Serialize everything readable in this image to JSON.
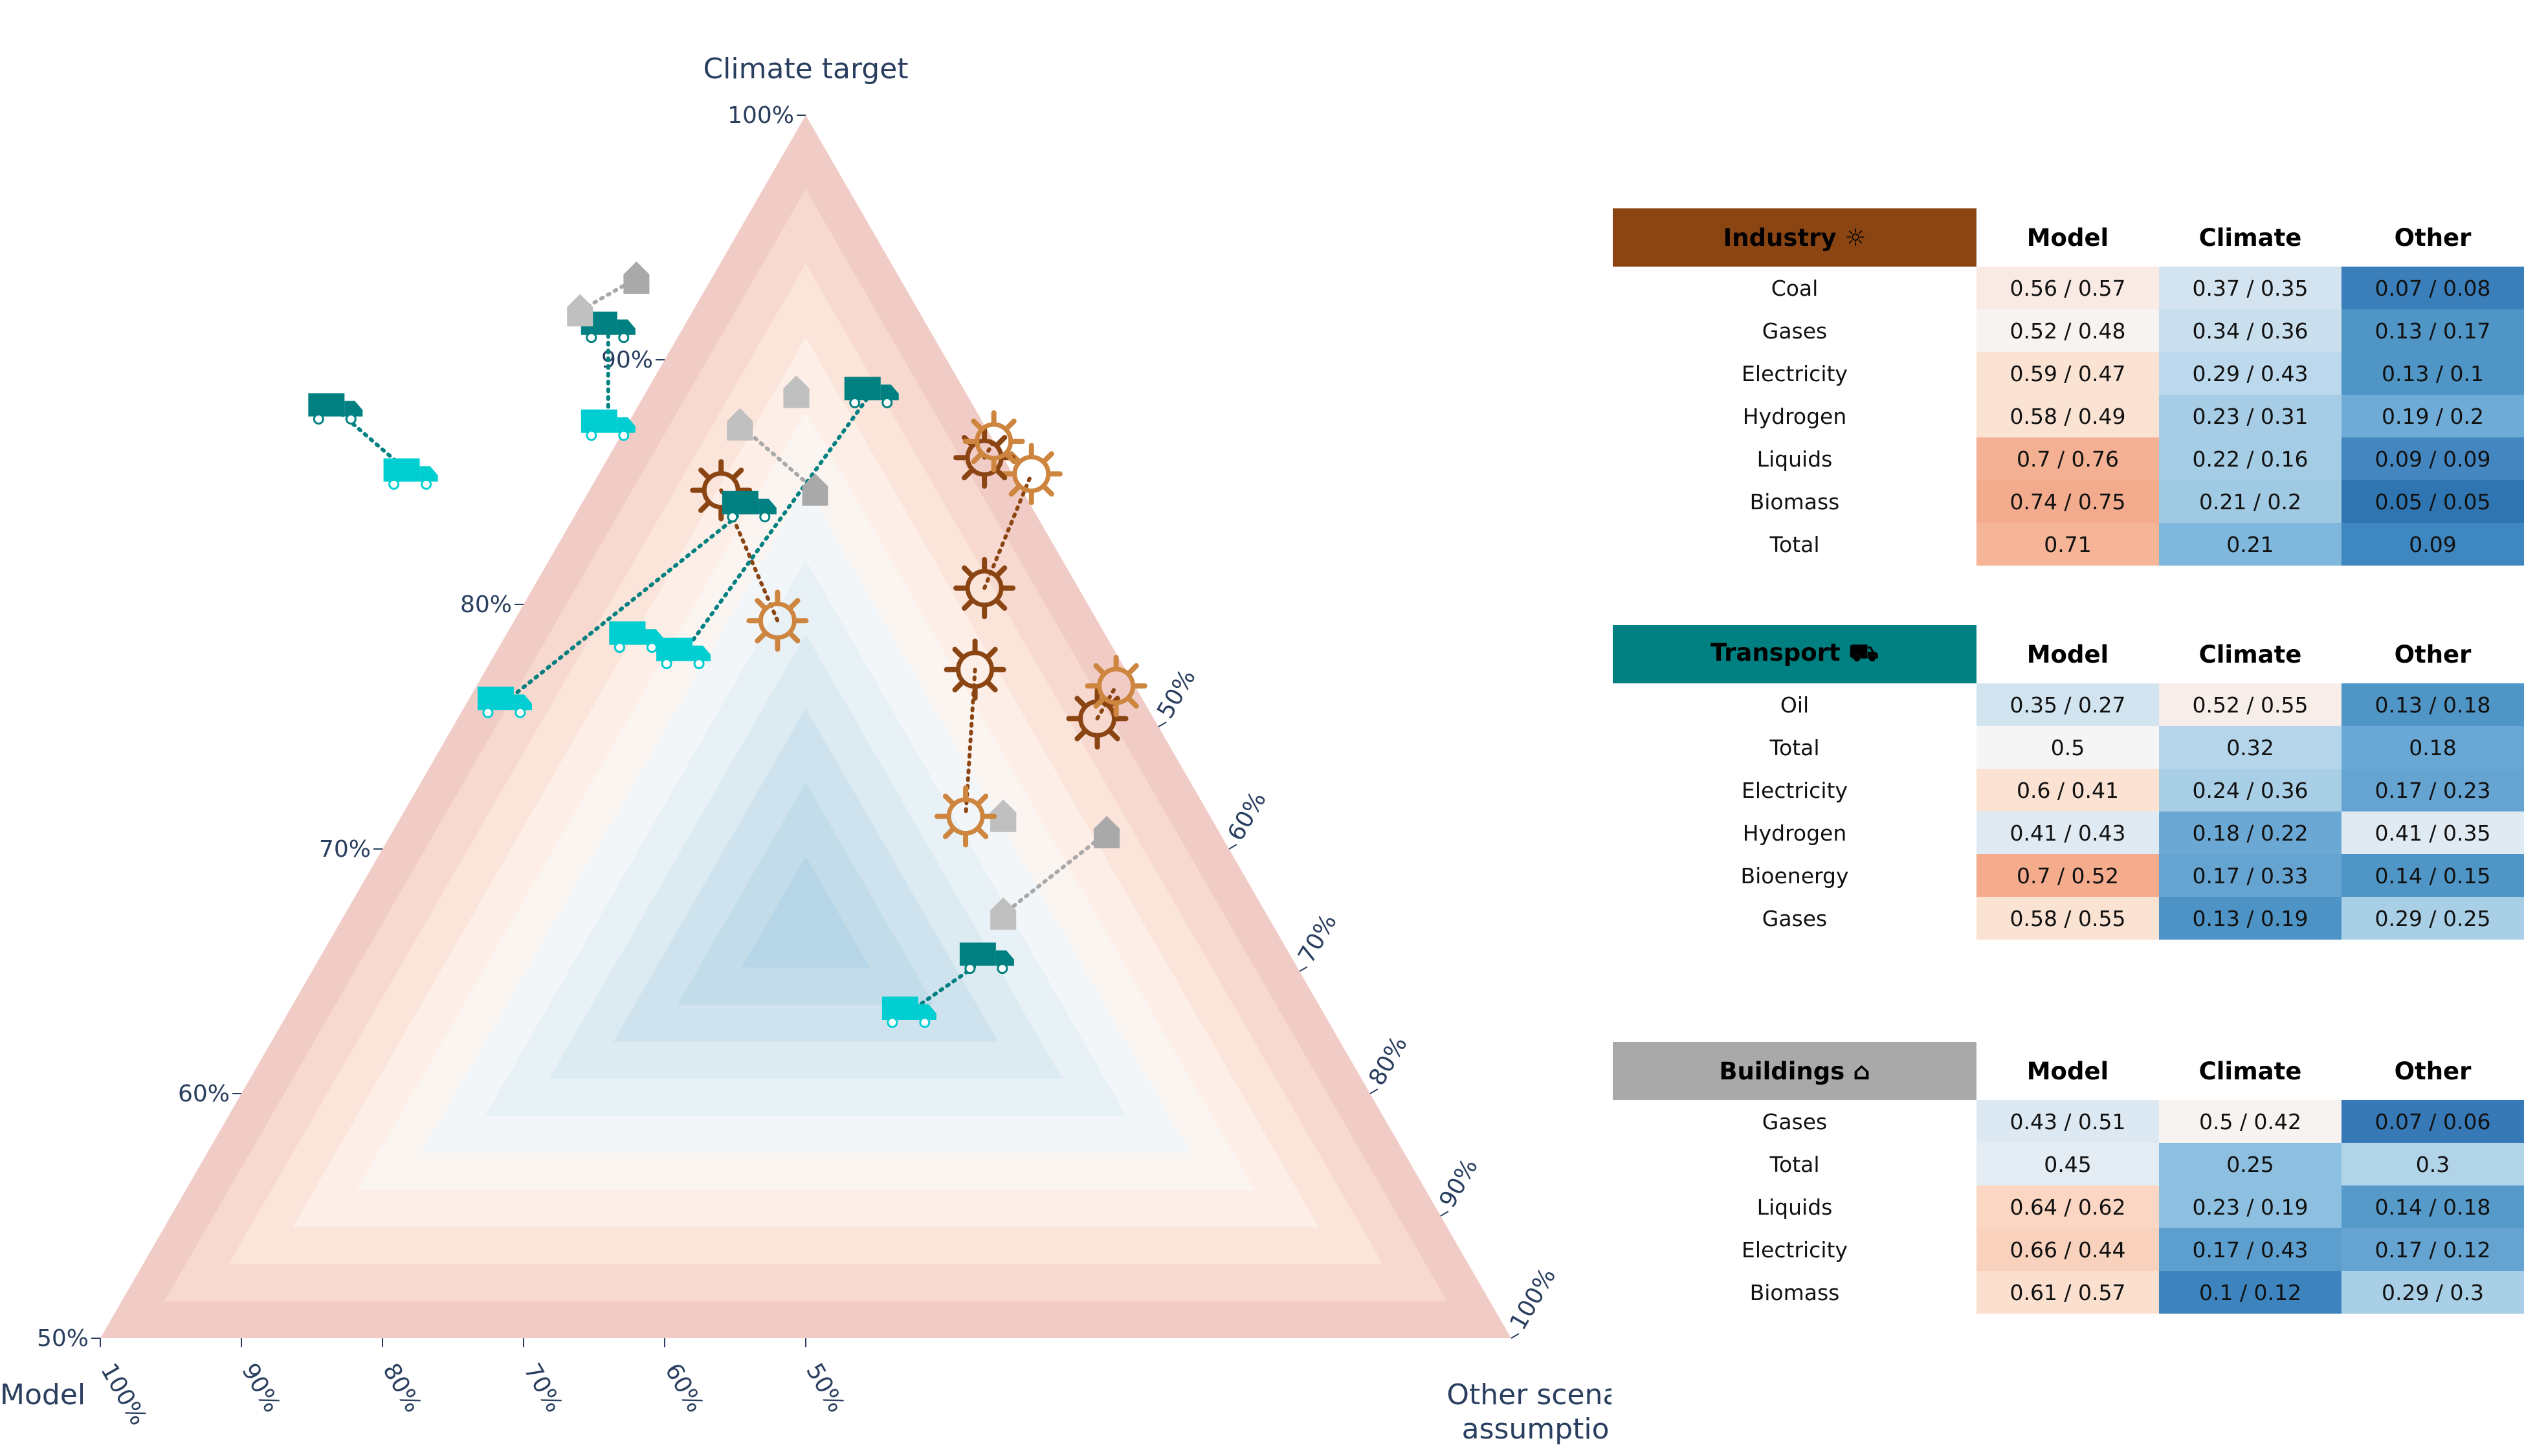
{
  "colors": {
    "industry_dark": "#8B4513",
    "industry_light": "#CD853F",
    "transport_dark": "#008080",
    "transport_light": "#00CED1",
    "buildings_dark": "#A9A9A9",
    "buildings_light": "#C0C0C0",
    "axis_text": "#2a3f5f"
  },
  "chart_data": {
    "type": "ternary-scatter",
    "axes": {
      "a_title": "Climate target",
      "b_title": "Model",
      "c_title": "Other scenario assumptions",
      "c_title_line1": "Other scenario",
      "c_title_line2": "assumptions",
      "range_min": 0.5,
      "range_max": 1.0,
      "ticks": [
        "50%",
        "60%",
        "70%",
        "80%",
        "90%",
        "100%"
      ]
    },
    "background": "concentric triangular bands; blue near center of the zoomed triangle, red toward vertices",
    "pairs": [
      {
        "sector": "transport",
        "from": {
          "a": 0.51,
          "b": 0.58,
          "c": 0.39
        },
        "to": {
          "a": 0.55,
          "b": 0.53,
          "c": 0.42
        }
      },
      {
        "sector": "buildings",
        "from": {
          "a": 0.44,
          "b": 0.69,
          "c": 0.37
        },
        "to": {
          "a": 0.49,
          "b": 0.61,
          "c": 0.4
        }
      },
      {
        "sector": "buildings",
        "from": {
          "a": 0.43,
          "b": 0.64,
          "c": 0.43
        },
        "to": {
          "a": 0.43,
          "b": 0.64,
          "c": 0.43
        }
      },
      {
        "sector": "industry",
        "from": {
          "a": 0.34,
          "b": 0.67,
          "c": 0.49
        },
        "to": {
          "a": 0.43,
          "b": 0.62,
          "c": 0.45
        }
      },
      {
        "sector": "industry",
        "from": {
          "a": 0.29,
          "b": 0.7,
          "c": 0.51
        },
        "to": {
          "a": 0.22,
          "b": 0.76,
          "c": 0.52
        }
      },
      {
        "sector": "industry",
        "from": {
          "a": 0.37,
          "b": 0.72,
          "c": 0.41
        },
        "to": {
          "a": 0.35,
          "b": 0.74,
          "c": 0.41
        }
      },
      {
        "sector": "industry",
        "from": {
          "a": 0.23,
          "b": 0.59,
          "c": 0.68
        },
        "to": {
          "a": 0.31,
          "b": 0.58,
          "c": 0.61
        }
      },
      {
        "sector": "industry",
        "from": {
          "a": 0.21,
          "b": 0.74,
          "c": 0.55
        },
        "to": {
          "a": 0.2,
          "b": 0.75,
          "c": 0.55
        }
      },
      {
        "sector": "transport",
        "from": {
          "a": 0.24,
          "b": 0.6,
          "c": 0.66
        },
        "to": {
          "a": 0.36,
          "b": 0.41,
          "c": 0.73
        }
      },
      {
        "sector": "transport",
        "from": {
          "a": 0.32,
          "b": 0.5,
          "c": 0.68
        },
        "to": {
          "a": 0.32,
          "b": 0.5,
          "c": 0.68
        }
      },
      {
        "sector": "transport",
        "from": {
          "a": 0.17,
          "b": 0.7,
          "c": 0.63
        },
        "to": {
          "a": 0.33,
          "b": 0.52,
          "c": 0.65
        }
      },
      {
        "sector": "transport",
        "from": {
          "a": 0.18,
          "b": 0.41,
          "c": 0.91
        },
        "to": {
          "a": 0.22,
          "b": 0.43,
          "c": 0.85
        }
      },
      {
        "sector": "transport",
        "from": {
          "a": 0.13,
          "b": 0.58,
          "c": 0.79
        },
        "to": {
          "a": 0.19,
          "b": 0.55,
          "c": 0.76
        }
      },
      {
        "sector": "buildings",
        "from": {
          "a": 0.23,
          "b": 0.64,
          "c": 0.63
        },
        "to": {
          "a": 0.19,
          "b": 0.62,
          "c": 0.69
        }
      },
      {
        "sector": "buildings",
        "from": {
          "a": 0.17,
          "b": 0.66,
          "c": 0.67
        },
        "to": {
          "a": 0.17,
          "b": 0.66,
          "c": 0.67
        }
      },
      {
        "sector": "buildings",
        "from": {
          "a": 0.1,
          "b": 0.61,
          "c": 0.79
        },
        "to": {
          "a": 0.12,
          "b": 0.57,
          "c": 0.81
        }
      }
    ]
  },
  "tables": [
    {
      "sector": "industry",
      "title": "Industry ☼",
      "headers": [
        "Model",
        "Climate",
        "Other"
      ],
      "rows": [
        {
          "label": "Coal",
          "cells": [
            "0.56 / 0.57",
            "0.37 / 0.35",
            "0.07 / 0.08"
          ],
          "colors": [
            "#f9eae3",
            "#d3e3ef",
            "#3b7fba"
          ]
        },
        {
          "label": "Gases",
          "cells": [
            "0.52 / 0.48",
            "0.34 / 0.36",
            "0.13 / 0.17"
          ],
          "colors": [
            "#f6f3f1",
            "#c9dfee",
            "#4f95c6"
          ]
        },
        {
          "label": "Electricity",
          "cells": [
            "0.59 / 0.47",
            "0.29 / 0.43",
            "0.13 / 0.1"
          ],
          "colors": [
            "#fbe3d4",
            "#bcd8ec",
            "#4f95c6"
          ]
        },
        {
          "label": "Hydrogen",
          "cells": [
            "0.58 / 0.49",
            "0.23 / 0.31",
            "0.19 / 0.2"
          ],
          "colors": [
            "#fbe3d4",
            "#a6cde5",
            "#6eabd6"
          ]
        },
        {
          "label": "Liquids",
          "cells": [
            "0.7 / 0.76",
            "0.22 / 0.16",
            "0.09 / 0.09"
          ],
          "colors": [
            "#f4b092",
            "#a4cce5",
            "#4386c0"
          ]
        },
        {
          "label": "Biomass",
          "cells": [
            "0.74 / 0.75",
            "0.21 / 0.2",
            "0.05 / 0.05"
          ],
          "colors": [
            "#f3ab8d",
            "#a0c9e3",
            "#2f75b2"
          ]
        },
        {
          "label": "Total",
          "cells": [
            "0.71",
            "0.21",
            "0.09"
          ],
          "colors": [
            "#f5b596",
            "#7fb8dc",
            "#3e87c0"
          ]
        }
      ]
    },
    {
      "sector": "transport",
      "title": "Transport ⛟",
      "headers": [
        "Model",
        "Climate",
        "Other"
      ],
      "rows": [
        {
          "label": "Oil",
          "cells": [
            "0.35 / 0.27",
            "0.52 / 0.55",
            "0.13 / 0.18"
          ],
          "colors": [
            "#d2e4f0",
            "#f8eee9",
            "#4f95c6"
          ]
        },
        {
          "label": "Total",
          "cells": [
            "0.5",
            "0.32",
            "0.18"
          ],
          "colors": [
            "#f5f5f5",
            "#b4d5ea",
            "#69a7d4"
          ]
        },
        {
          "label": "Electricity",
          "cells": [
            "0.6 / 0.41",
            "0.24 / 0.36",
            "0.17 / 0.23"
          ],
          "colors": [
            "#fbe2d3",
            "#a8cfe6",
            "#65a3d1"
          ]
        },
        {
          "label": "Hydrogen",
          "cells": [
            "0.41 / 0.43",
            "0.18 / 0.22",
            "0.41 / 0.35"
          ],
          "colors": [
            "#dfeaf2",
            "#6ba9d4",
            "#dfeaf2"
          ]
        },
        {
          "label": "Bioenergy",
          "cells": [
            "0.7 / 0.52",
            "0.17 / 0.33",
            "0.14 / 0.15"
          ],
          "colors": [
            "#f4ac8d",
            "#65a3d1",
            "#4f95c6"
          ]
        },
        {
          "label": "Gases",
          "cells": [
            "0.58 / 0.55",
            "0.13 / 0.19",
            "0.29 / 0.25"
          ],
          "colors": [
            "#fbe3d4",
            "#4d93c5",
            "#a8cfe6"
          ]
        }
      ]
    },
    {
      "sector": "buildings",
      "title": "Buildings ⌂",
      "headers": [
        "Model",
        "Climate",
        "Other"
      ],
      "rows": [
        {
          "label": "Gases",
          "cells": [
            "0.43 / 0.51",
            "0.5 / 0.42",
            "0.07 / 0.06"
          ],
          "colors": [
            "#dde9f2",
            "#f6f3f1",
            "#3679b6"
          ]
        },
        {
          "label": "Total",
          "cells": [
            "0.45",
            "0.25",
            "0.3"
          ],
          "colors": [
            "#e4edf3",
            "#8dc0e0",
            "#b2d4e9"
          ]
        },
        {
          "label": "Liquids",
          "cells": [
            "0.64 / 0.62",
            "0.23 / 0.19",
            "0.14 / 0.18"
          ],
          "colors": [
            "#fad6c3",
            "#8dc0e0",
            "#569ac9"
          ]
        },
        {
          "label": "Electricity",
          "cells": [
            "0.66 / 0.44",
            "0.17 / 0.43",
            "0.17 / 0.12"
          ],
          "colors": [
            "#f9d2bd",
            "#5c9ecd",
            "#65a3d1"
          ]
        },
        {
          "label": "Biomass",
          "cells": [
            "0.61 / 0.57",
            "0.1 / 0.12",
            "0.29 / 0.3"
          ],
          "colors": [
            "#fbdfcf",
            "#3d84bf",
            "#a8cfe6"
          ]
        }
      ]
    }
  ]
}
